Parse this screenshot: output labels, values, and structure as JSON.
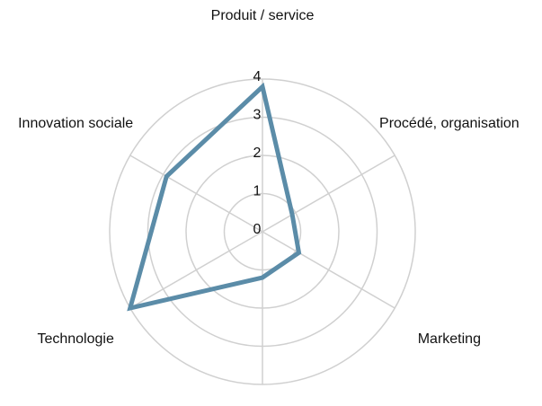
{
  "chart_data": {
    "type": "radar",
    "categories": [
      "Produit / service",
      "Procédé, organisation",
      "Marketing",
      null,
      "Technologie",
      "Innovation sociale"
    ],
    "series": [
      {
        "color": "#5b8ca8",
        "values": [
          3.8,
          0.9,
          1.1,
          1.2,
          4,
          2.9
        ]
      }
    ],
    "ylim": [
      0,
      4
    ],
    "yticks": [
      0,
      1,
      2,
      3,
      4
    ],
    "grid": true
  }
}
